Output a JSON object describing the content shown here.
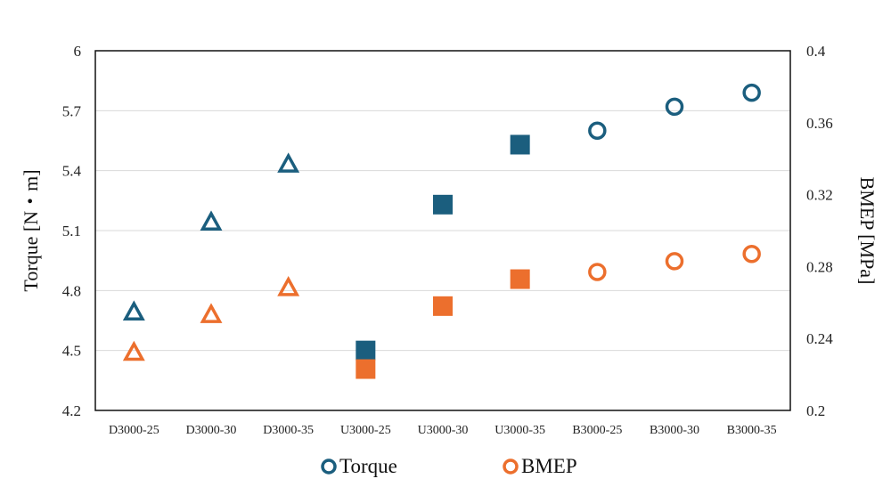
{
  "chart_data": {
    "type": "scatter",
    "categories": [
      "D3000-25",
      "D3000-30",
      "D3000-35",
      "U3000-25",
      "U3000-30",
      "U3000-35",
      "B3000-25",
      "B3000-30",
      "B3000-35"
    ],
    "marker_by_category": [
      "triangle",
      "triangle",
      "triangle",
      "square",
      "square",
      "square",
      "circle",
      "circle",
      "circle"
    ],
    "series": [
      {
        "name": "Torque",
        "axis": "left",
        "color": "#1b5e7e",
        "values": [
          4.69,
          5.14,
          5.43,
          4.5,
          5.23,
          5.53,
          5.6,
          5.72,
          5.79
        ]
      },
      {
        "name": "BMEP",
        "axis": "right",
        "color": "#ec6f2d",
        "values": [
          0.232,
          0.253,
          0.268,
          0.223,
          0.258,
          0.273,
          0.277,
          0.283,
          0.287
        ]
      }
    ],
    "ylabel": "Torque [N・m]",
    "y2label": "BMEP [MPa]",
    "ylim": [
      4.2,
      6
    ],
    "yticks": [
      "4.2",
      "4.5",
      "4.8",
      "5.1",
      "5.4",
      "5.7",
      "6"
    ],
    "y2lim": [
      0.2,
      0.4
    ],
    "y2ticks": [
      "0.2",
      "0.24",
      "0.28",
      "0.32",
      "0.36",
      "0.4"
    ],
    "grid": true,
    "legend_position": "bottom"
  }
}
